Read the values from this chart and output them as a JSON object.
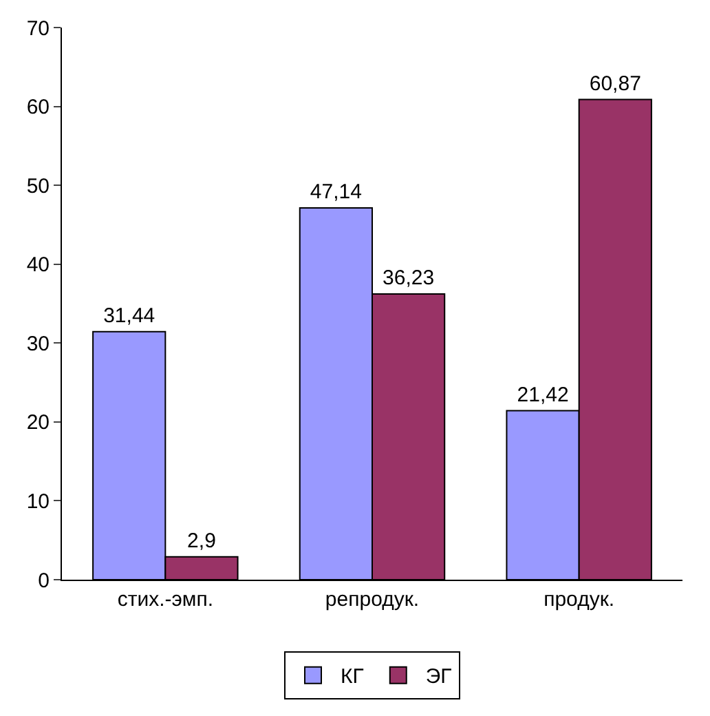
{
  "chart_data": {
    "type": "bar",
    "categories": [
      "стих.-эмп.",
      "репродук.",
      "продук."
    ],
    "series": [
      {
        "name": "КГ",
        "color": "#9999ff",
        "values": [
          31.44,
          47.14,
          21.42
        ],
        "value_labels": [
          "31,44",
          "47,14",
          "21,42"
        ]
      },
      {
        "name": "ЭГ",
        "color": "#993366",
        "values": [
          2.9,
          36.23,
          60.87
        ],
        "value_labels": [
          "2,9",
          "36,23",
          "60,87"
        ]
      }
    ],
    "ylim": [
      0,
      70
    ],
    "yticks": [
      0,
      10,
      20,
      30,
      40,
      50,
      60,
      70
    ],
    "grid": false,
    "legend": "bottom"
  }
}
